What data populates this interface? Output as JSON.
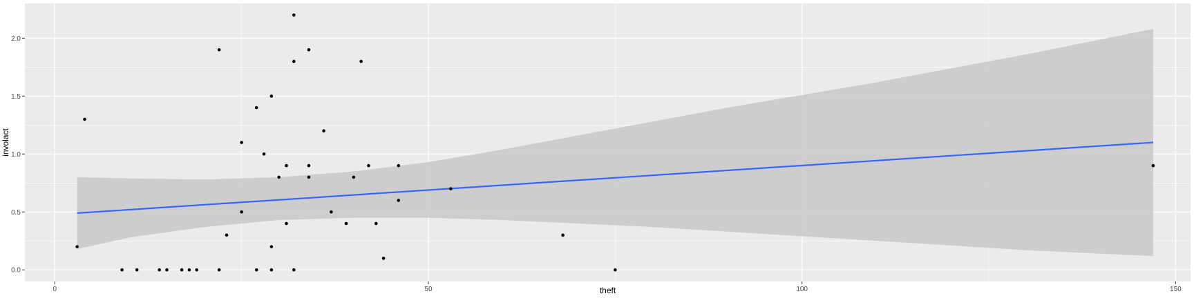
{
  "chart_data": {
    "type": "scatter",
    "title": "",
    "xlabel": "theft",
    "ylabel": "involact",
    "xlim": [
      -4,
      152
    ],
    "ylim": [
      -0.1,
      2.3
    ],
    "x_ticks": [
      0,
      50,
      100,
      150
    ],
    "x_tick_labels": [
      "0",
      "50",
      "100",
      "150"
    ],
    "y_ticks": [
      0.0,
      0.5,
      1.0,
      1.5,
      2.0
    ],
    "y_tick_labels": [
      "0.0",
      "0.5",
      "1.0",
      "1.5",
      "2.0"
    ],
    "grid": true,
    "legend": "none",
    "colors": {
      "panel_background": "#EBEBEB",
      "grid_major": "#FFFFFF",
      "points": "#000000",
      "fit_line": "#3366FF",
      "confidence_band": "#C8C8C8"
    },
    "points": [
      {
        "x": 3,
        "y": 0.2
      },
      {
        "x": 4,
        "y": 1.3
      },
      {
        "x": 9,
        "y": 0.0
      },
      {
        "x": 11,
        "y": 0.0
      },
      {
        "x": 14,
        "y": 0.0
      },
      {
        "x": 15,
        "y": 0.0
      },
      {
        "x": 17,
        "y": 0.0
      },
      {
        "x": 18,
        "y": 0.0
      },
      {
        "x": 19,
        "y": 0.0
      },
      {
        "x": 22,
        "y": 1.9
      },
      {
        "x": 22,
        "y": 0.0
      },
      {
        "x": 23,
        "y": 0.3
      },
      {
        "x": 25,
        "y": 1.1
      },
      {
        "x": 25,
        "y": 0.5
      },
      {
        "x": 27,
        "y": 1.4
      },
      {
        "x": 27,
        "y": 0.0
      },
      {
        "x": 28,
        "y": 1.0
      },
      {
        "x": 29,
        "y": 1.5
      },
      {
        "x": 29,
        "y": 0.2
      },
      {
        "x": 29,
        "y": 0.0
      },
      {
        "x": 30,
        "y": 0.8
      },
      {
        "x": 31,
        "y": 0.9
      },
      {
        "x": 31,
        "y": 0.4
      },
      {
        "x": 32,
        "y": 2.2
      },
      {
        "x": 32,
        "y": 1.8
      },
      {
        "x": 32,
        "y": 0.0
      },
      {
        "x": 34,
        "y": 1.9
      },
      {
        "x": 34,
        "y": 0.9
      },
      {
        "x": 34,
        "y": 0.8
      },
      {
        "x": 36,
        "y": 1.2
      },
      {
        "x": 37,
        "y": 0.5
      },
      {
        "x": 39,
        "y": 0.4
      },
      {
        "x": 40,
        "y": 0.8
      },
      {
        "x": 41,
        "y": 1.8
      },
      {
        "x": 42,
        "y": 0.9
      },
      {
        "x": 43,
        "y": 0.4
      },
      {
        "x": 44,
        "y": 0.1
      },
      {
        "x": 46,
        "y": 0.9
      },
      {
        "x": 46,
        "y": 0.6
      },
      {
        "x": 53,
        "y": 0.7
      },
      {
        "x": 68,
        "y": 0.3
      },
      {
        "x": 75,
        "y": 0.0
      },
      {
        "x": 147,
        "y": 0.9
      }
    ],
    "fit_line": {
      "x": [
        3,
        147
      ],
      "y": [
        0.49,
        1.1
      ]
    },
    "confidence_band": {
      "x": [
        3,
        10,
        20,
        30,
        40,
        50,
        60,
        70,
        80,
        90,
        100,
        110,
        120,
        130,
        140,
        147
      ],
      "lower": [
        0.18,
        0.28,
        0.37,
        0.43,
        0.45,
        0.45,
        0.43,
        0.4,
        0.37,
        0.33,
        0.29,
        0.25,
        0.21,
        0.17,
        0.14,
        0.12
      ],
      "upper": [
        0.8,
        0.79,
        0.78,
        0.8,
        0.85,
        0.93,
        1.04,
        1.16,
        1.28,
        1.4,
        1.51,
        1.62,
        1.74,
        1.86,
        1.99,
        2.08
      ]
    }
  }
}
